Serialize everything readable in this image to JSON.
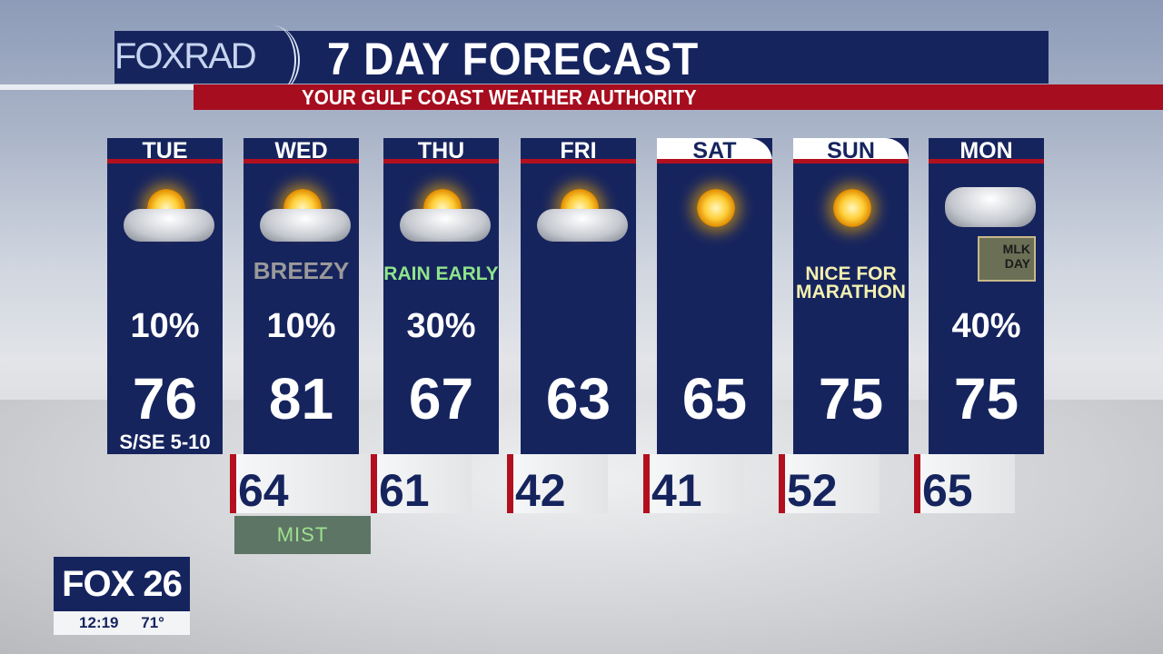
{
  "header": {
    "logo": "FOX",
    "logo_suffix": "RAD",
    "title": "7 DAY FORECAST",
    "subtitle": "YOUR GULF COAST WEATHER AUTHORITY"
  },
  "days": [
    {
      "day": "TUE",
      "icon": "partly-cloudy-icon",
      "note": "",
      "pop": "10%",
      "high": "76",
      "wind": "S/SE 5-10",
      "low": ""
    },
    {
      "day": "WED",
      "icon": "partly-sunny-icon",
      "note": "BREEZY",
      "pop": "10%",
      "high": "81",
      "low": "64"
    },
    {
      "day": "THU",
      "icon": "cold-front-partly-sunny-icon",
      "note": "RAIN EARLY",
      "pop": "30%",
      "high": "67",
      "low": "61"
    },
    {
      "day": "FRI",
      "icon": "partly-cloudy-icon",
      "note": "",
      "pop": "",
      "high": "63",
      "low": "42"
    },
    {
      "day": "SAT",
      "icon": "sunny-icon",
      "note": "",
      "pop": "",
      "high": "65",
      "low": "41"
    },
    {
      "day": "SUN",
      "icon": "mostly-sunny-icon",
      "note": "NICE FOR MARATHON",
      "pop": "",
      "high": "75",
      "low": "52"
    },
    {
      "day": "MON",
      "icon": "cloudy-icon",
      "note": "MLK DAY",
      "pop": "40%",
      "high": "75",
      "low": "65"
    }
  ],
  "mist_label": "MIST",
  "bug": {
    "logo": "FOX 26",
    "time": "12:19",
    "temp": "71°"
  },
  "colors": {
    "navy": "#16245e",
    "red": "#b3101f"
  }
}
